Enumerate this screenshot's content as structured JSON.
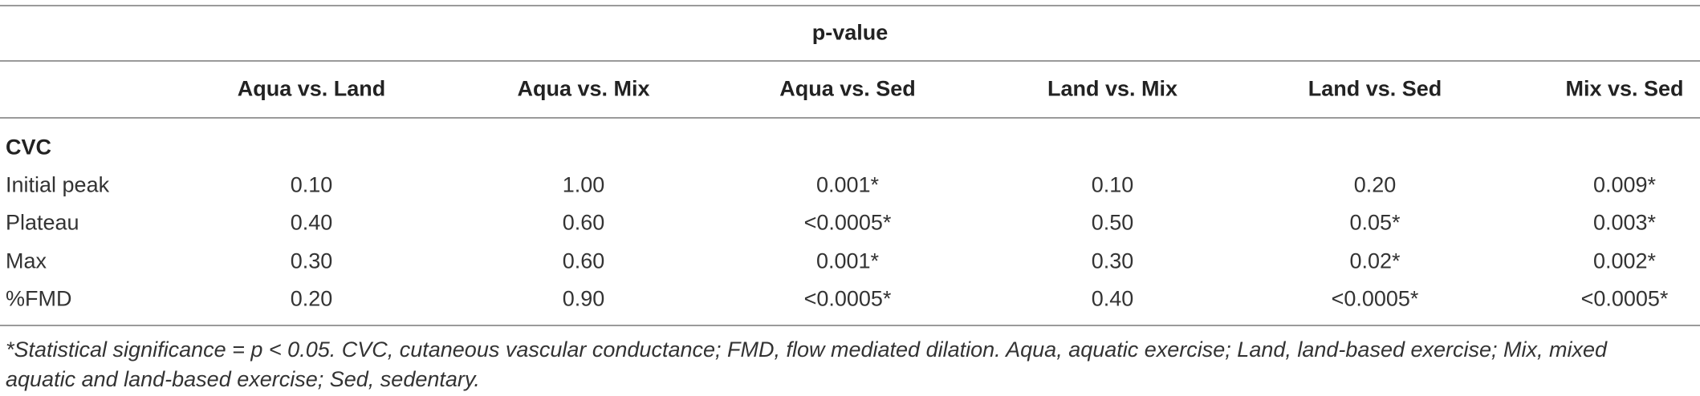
{
  "table": {
    "title": "p-value",
    "columns": [
      "Aqua vs. Land",
      "Aqua vs. Mix",
      "Aqua vs. Sed",
      "Land vs. Mix",
      "Land vs. Sed",
      "Mix vs. Sed"
    ],
    "group": "CVC",
    "rows": [
      {
        "label": "Initial peak",
        "cells": [
          "0.10",
          "1.00",
          "0.001*",
          "0.10",
          "0.20",
          "0.009*"
        ]
      },
      {
        "label": "Plateau",
        "cells": [
          "0.40",
          "0.60",
          "<0.0005*",
          "0.50",
          "0.05*",
          "0.003*"
        ]
      },
      {
        "label": "Max",
        "cells": [
          "0.30",
          "0.60",
          "0.001*",
          "0.30",
          "0.02*",
          "0.002*"
        ]
      },
      {
        "label": "%FMD",
        "cells": [
          "0.20",
          "0.90",
          "<0.0005*",
          "0.40",
          "<0.0005*",
          "<0.0005*"
        ]
      }
    ],
    "footnote": "*Statistical significance = p < 0.05. CVC, cutaneous vascular conductance; FMD, flow mediated dilation. Aqua, aquatic exercise; Land, land-based exercise; Mix, mixed aquatic and land-based exercise; Sed, sedentary."
  }
}
